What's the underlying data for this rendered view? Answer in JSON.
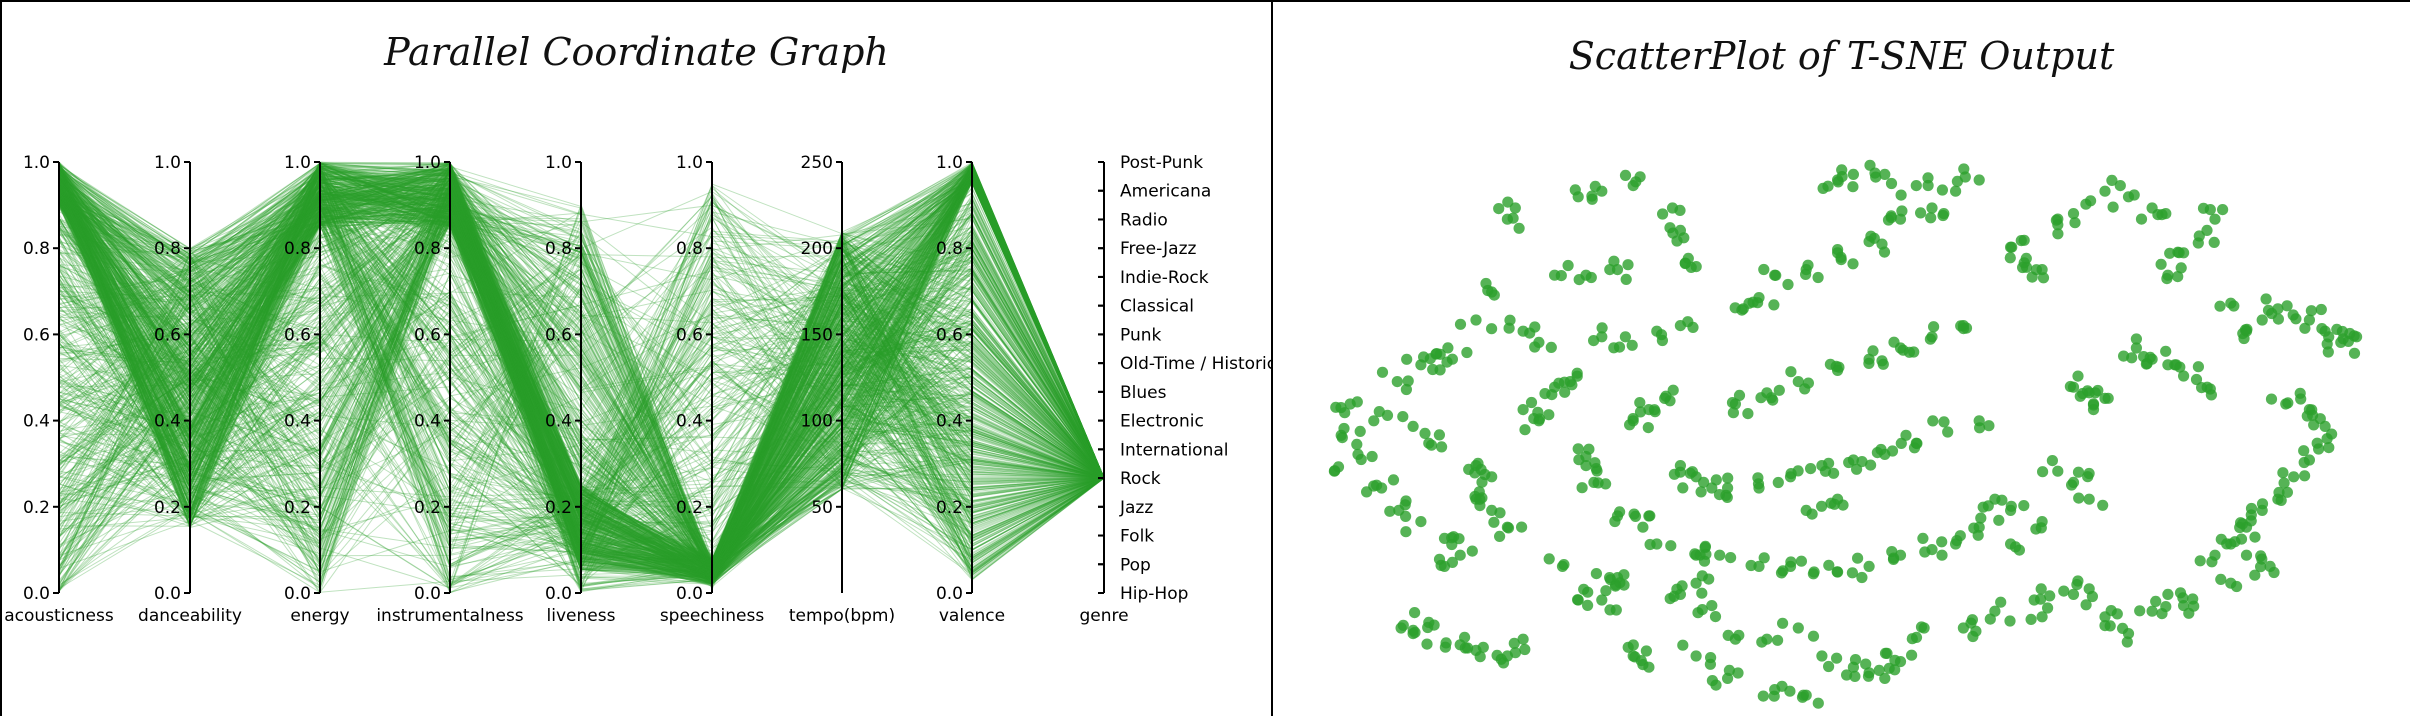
{
  "titles": {
    "parallel": "Parallel Coordinate Graph",
    "scatter": "ScatterPlot of T-SNE Output"
  },
  "colors": {
    "line": "#2ca02c",
    "point": "#2ca02c",
    "axis": "#000000",
    "border": "#000000"
  },
  "chart_data": [
    {
      "type": "parallel-coordinates",
      "title": "Parallel Coordinate Graph",
      "axes": [
        {
          "key": "acousticness",
          "label": "acousticness",
          "domain": [
            0.0,
            1.0
          ],
          "ticks": [
            "0.0",
            "0.2",
            "0.4",
            "0.6",
            "0.8",
            "1.0"
          ]
        },
        {
          "key": "danceability",
          "label": "danceability",
          "domain": [
            0.0,
            1.0
          ],
          "ticks": [
            "0.0",
            "0.2",
            "0.4",
            "0.6",
            "0.8",
            "1.0"
          ]
        },
        {
          "key": "energy",
          "label": "energy",
          "domain": [
            0.0,
            1.0
          ],
          "ticks": [
            "0.0",
            "0.2",
            "0.4",
            "0.6",
            "0.8",
            "1.0"
          ]
        },
        {
          "key": "instrumentalness",
          "label": "instrumentalness",
          "domain": [
            0.0,
            1.0
          ],
          "ticks": [
            "0.0",
            "0.2",
            "0.4",
            "0.6",
            "0.8",
            "1.0"
          ]
        },
        {
          "key": "liveness",
          "label": "liveness",
          "domain": [
            0.0,
            1.0
          ],
          "ticks": [
            "0.0",
            "0.2",
            "0.4",
            "0.6",
            "0.8",
            "1.0"
          ]
        },
        {
          "key": "speechiness",
          "label": "speechiness",
          "domain": [
            0.0,
            1.0
          ],
          "ticks": [
            "0.0",
            "0.2",
            "0.4",
            "0.6",
            "0.8",
            "1.0"
          ]
        },
        {
          "key": "tempo",
          "label": "tempo(bpm)",
          "domain": [
            0,
            250
          ],
          "ticks": [
            "50",
            "100",
            "150",
            "200",
            "250"
          ],
          "tick_values": [
            50,
            100,
            150,
            200,
            250
          ]
        },
        {
          "key": "valence",
          "label": "valence",
          "domain": [
            0.0,
            1.0
          ],
          "ticks": [
            "0.0",
            "0.2",
            "0.4",
            "0.6",
            "0.8",
            "1.0"
          ]
        },
        {
          "key": "genre",
          "label": "genre",
          "categorical": true,
          "categories": [
            "Hip-Hop",
            "Pop",
            "Folk",
            "Jazz",
            "Rock",
            "International",
            "Electronic",
            "Blues",
            "Old-Time / Historic",
            "Punk",
            "Classical",
            "Indie-Rock",
            "Free-Jazz",
            "Radio",
            "Americana",
            "Post-Punk"
          ]
        }
      ],
      "records": [
        {
          "acousticness": 0.99,
          "danceability": 0.35,
          "energy": 0.12,
          "instrumentalness": 0.92,
          "liveness": 0.11,
          "speechiness": 0.04,
          "tempo": 96,
          "valence": 0.35,
          "genre": "Rock"
        },
        {
          "acousticness": 0.85,
          "danceability": 0.42,
          "energy": 0.33,
          "instrumentalness": 0.88,
          "liveness": 0.1,
          "speechiness": 0.03,
          "tempo": 120,
          "valence": 0.52,
          "genre": "Rock"
        },
        {
          "acousticness": 0.02,
          "danceability": 0.46,
          "energy": 0.95,
          "instrumentalness": 0.97,
          "liveness": 0.18,
          "speechiness": 0.05,
          "tempo": 145,
          "valence": 0.94,
          "genre": "Rock"
        },
        {
          "acousticness": 0.01,
          "danceability": 0.55,
          "energy": 0.99,
          "instrumentalness": 0.98,
          "liveness": 0.35,
          "speechiness": 0.06,
          "tempo": 168,
          "valence": 0.97,
          "genre": "Rock"
        },
        {
          "acousticness": 0.6,
          "danceability": 0.3,
          "energy": 0.45,
          "instrumentalness": 0.7,
          "liveness": 0.12,
          "speechiness": 0.03,
          "tempo": 110,
          "valence": 0.3,
          "genre": "Rock"
        },
        {
          "acousticness": 0.3,
          "danceability": 0.5,
          "energy": 0.8,
          "instrumentalness": 0.95,
          "liveness": 0.25,
          "speechiness": 0.04,
          "tempo": 130,
          "valence": 0.88,
          "genre": "Rock"
        },
        {
          "acousticness": 0.97,
          "danceability": 0.2,
          "energy": 0.05,
          "instrumentalness": 0.9,
          "liveness": 0.08,
          "speechiness": 0.02,
          "tempo": 70,
          "valence": 0.1,
          "genre": "Rock"
        },
        {
          "acousticness": 0.1,
          "danceability": 0.62,
          "energy": 0.92,
          "instrumentalness": 0.85,
          "liveness": 0.4,
          "speechiness": 0.07,
          "tempo": 185,
          "valence": 0.75,
          "genre": "Rock"
        },
        {
          "acousticness": 0.45,
          "danceability": 0.38,
          "energy": 0.6,
          "instrumentalness": 0.99,
          "liveness": 0.15,
          "speechiness": 0.03,
          "tempo": 140,
          "valence": 0.6,
          "genre": "Rock"
        },
        {
          "acousticness": 0.75,
          "danceability": 0.28,
          "energy": 0.2,
          "instrumentalness": 0.01,
          "liveness": 0.9,
          "speechiness": 0.08,
          "tempo": 80,
          "valence": 0.2,
          "genre": "Rock"
        },
        {
          "acousticness": 0.05,
          "danceability": 0.7,
          "energy": 0.97,
          "instrumentalness": 0.6,
          "liveness": 0.3,
          "speechiness": 0.12,
          "tempo": 160,
          "valence": 0.85,
          "genre": "Rock"
        },
        {
          "acousticness": 0.9,
          "danceability": 0.25,
          "energy": 0.15,
          "instrumentalness": 0.93,
          "liveness": 0.1,
          "speechiness": 0.04,
          "tempo": 100,
          "valence": 0.05,
          "genre": "Rock"
        }
      ],
      "line_count_hint": 800,
      "line_opacity": 0.3
    },
    {
      "type": "scatter",
      "title": "ScatterPlot of T-SNE Output",
      "xlabel": "",
      "ylabel": "",
      "points": [
        [
          -45,
          1
        ],
        [
          -43,
          -2
        ],
        [
          -41,
          4
        ],
        [
          -44,
          7
        ],
        [
          -46,
          -5
        ],
        [
          -40,
          -8
        ],
        [
          -38,
          11
        ],
        [
          -35,
          14
        ],
        [
          -33,
          16
        ],
        [
          -31,
          15
        ],
        [
          -37,
          -11
        ],
        [
          -35,
          -14
        ],
        [
          -32,
          -17
        ],
        [
          -36,
          3
        ],
        [
          -34,
          0
        ],
        [
          -28,
          22
        ],
        [
          -26,
          27
        ],
        [
          -24,
          40
        ],
        [
          -23,
          42
        ],
        [
          -15,
          44
        ],
        [
          -12,
          45
        ],
        [
          -8,
          46
        ],
        [
          -3,
          42
        ],
        [
          -2,
          38
        ],
        [
          -1,
          33
        ],
        [
          -18,
          30
        ],
        [
          -14,
          30
        ],
        [
          -10,
          31
        ],
        [
          -12,
          19
        ],
        [
          -9,
          19
        ],
        [
          -5,
          20
        ],
        [
          -2,
          21
        ],
        [
          -18,
          10
        ],
        [
          -16,
          11
        ],
        [
          -15,
          -1
        ],
        [
          -14,
          -4
        ],
        [
          -13,
          -7
        ],
        [
          -10,
          -13
        ],
        [
          -6,
          -13
        ],
        [
          -17,
          -22
        ],
        [
          -15,
          -28
        ],
        [
          -12,
          -28
        ],
        [
          -11,
          -24
        ],
        [
          -10,
          -24
        ],
        [
          -2,
          -27
        ],
        [
          0,
          -25
        ],
        [
          2,
          -29
        ],
        [
          5,
          -35
        ],
        [
          9,
          -35
        ],
        [
          13,
          -33
        ],
        [
          16,
          -38
        ],
        [
          20,
          -40
        ],
        [
          22,
          -41
        ],
        [
          24,
          -42
        ],
        [
          26,
          -39
        ],
        [
          29,
          -33
        ],
        [
          34,
          -33
        ],
        [
          38,
          -30
        ],
        [
          43,
          -28
        ],
        [
          44,
          -31
        ],
        [
          48,
          -27
        ],
        [
          50,
          -26
        ],
        [
          52,
          -31
        ],
        [
          55,
          -34
        ],
        [
          58,
          -30
        ],
        [
          60,
          -27
        ],
        [
          62,
          -29
        ],
        [
          -22,
          -35
        ],
        [
          -24,
          -38
        ],
        [
          -28,
          -37
        ],
        [
          -30,
          -36
        ],
        [
          -34,
          -32
        ],
        [
          -36,
          -34
        ],
        [
          66,
          -20
        ],
        [
          68,
          -18
        ],
        [
          70,
          -15
        ],
        [
          72,
          -12
        ],
        [
          74,
          -10
        ],
        [
          76,
          -6
        ],
        [
          78,
          -3
        ],
        [
          79,
          0
        ],
        [
          80,
          3
        ],
        [
          78,
          6
        ],
        [
          75,
          7
        ],
        [
          73,
          -22
        ],
        [
          70,
          -20
        ],
        [
          68,
          -25
        ],
        [
          65,
          10
        ],
        [
          62,
          12
        ],
        [
          60,
          14
        ],
        [
          58,
          15
        ],
        [
          56,
          17
        ],
        [
          -5,
          -18
        ],
        [
          0,
          -20
        ],
        [
          3,
          -20
        ],
        [
          8,
          -22
        ],
        [
          12,
          -22
        ],
        [
          15,
          -23
        ],
        [
          18,
          -23
        ],
        [
          22,
          -22
        ],
        [
          26,
          -20
        ],
        [
          30,
          -19
        ],
        [
          33,
          -18
        ],
        [
          4,
          -8
        ],
        [
          8,
          -8
        ],
        [
          12,
          -6
        ],
        [
          16,
          -4
        ],
        [
          20,
          -3
        ],
        [
          24,
          -2
        ],
        [
          28,
          0
        ],
        [
          32,
          2
        ],
        [
          36,
          4
        ],
        [
          5,
          7
        ],
        [
          9,
          9
        ],
        [
          13,
          11
        ],
        [
          18,
          13
        ],
        [
          22,
          15
        ],
        [
          26,
          17
        ],
        [
          30,
          19
        ],
        [
          34,
          21
        ],
        [
          10,
          30
        ],
        [
          14,
          31
        ],
        [
          18,
          34
        ],
        [
          22,
          36
        ],
        [
          26,
          40
        ],
        [
          30,
          42
        ],
        [
          33,
          45
        ],
        [
          36,
          47
        ],
        [
          18,
          47
        ],
        [
          20,
          48
        ],
        [
          24,
          48
        ],
        [
          28,
          46
        ],
        [
          40,
          35
        ],
        [
          42,
          33
        ],
        [
          44,
          31
        ],
        [
          46,
          39
        ],
        [
          48,
          41
        ],
        [
          52,
          45
        ],
        [
          55,
          44
        ],
        [
          58,
          42
        ],
        [
          60,
          30
        ],
        [
          62,
          34
        ],
        [
          64,
          37
        ],
        [
          66,
          40
        ],
        [
          68,
          25
        ],
        [
          70,
          20
        ],
        [
          72,
          22
        ],
        [
          74,
          24
        ],
        [
          78,
          22
        ],
        [
          80,
          20
        ],
        [
          82,
          18
        ],
        [
          84,
          19
        ],
        [
          48,
          10
        ],
        [
          50,
          9
        ],
        [
          52,
          8
        ],
        [
          46,
          -5
        ],
        [
          48,
          -7
        ],
        [
          50,
          -10
        ],
        [
          38,
          -10
        ],
        [
          40,
          -12
        ],
        [
          -28,
          -10
        ],
        [
          -26,
          -12
        ],
        [
          -24,
          -15
        ],
        [
          -22,
          6
        ],
        [
          -20,
          4
        ],
        [
          -8,
          4
        ],
        [
          -6,
          6
        ],
        [
          -4,
          8
        ],
        [
          -2,
          -4
        ],
        [
          0,
          -6
        ],
        [
          2,
          -8
        ],
        [
          -20,
          18
        ],
        [
          -22,
          20
        ],
        [
          6,
          24
        ],
        [
          8,
          26
        ],
        [
          36,
          -15
        ],
        [
          40,
          -18
        ],
        [
          44,
          -14
        ],
        [
          14,
          -12
        ],
        [
          18,
          -10
        ],
        [
          -30,
          -20
        ],
        [
          -32,
          -22
        ],
        [
          -28,
          -4
        ],
        [
          -26,
          -6
        ],
        [
          -8,
          -38
        ],
        [
          -6,
          -40
        ],
        [
          0,
          -38
        ],
        [
          4,
          -42
        ],
        [
          10,
          -44
        ],
        [
          14,
          -45
        ]
      ],
      "xlim": [
        -50,
        88
      ],
      "ylim": [
        -48,
        52
      ]
    }
  ]
}
